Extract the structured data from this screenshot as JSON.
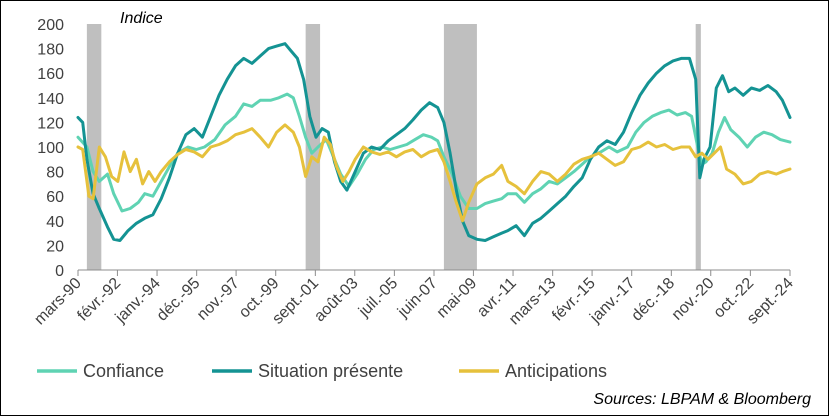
{
  "chart_data": {
    "type": "line",
    "ylabel": "Indice",
    "ylim": [
      0,
      200
    ],
    "yticks": [
      "0",
      "20",
      "40",
      "60",
      "80",
      "100",
      "120",
      "140",
      "160",
      "180",
      "200"
    ],
    "xlim": [
      1990.17,
      2024.67
    ],
    "xticks": [
      {
        "label": "mars-90",
        "t": 1990.17
      },
      {
        "label": "févr.-92",
        "t": 1992.08
      },
      {
        "label": "janv.-94",
        "t": 1994.0
      },
      {
        "label": "déc.-95",
        "t": 1995.92
      },
      {
        "label": "nov.-97",
        "t": 1997.83
      },
      {
        "label": "oct.-99",
        "t": 1999.75
      },
      {
        "label": "sept.-01",
        "t": 2001.67
      },
      {
        "label": "août-03",
        "t": 2003.58
      },
      {
        "label": "juil.-05",
        "t": 2005.5
      },
      {
        "label": "juin-07",
        "t": 2007.42
      },
      {
        "label": "mai-09",
        "t": 2009.33
      },
      {
        "label": "avr.-11",
        "t": 2011.25
      },
      {
        "label": "mars-13",
        "t": 2013.17
      },
      {
        "label": "févr.-15",
        "t": 2015.08
      },
      {
        "label": "janv.-17",
        "t": 2017.0
      },
      {
        "label": "déc.-18",
        "t": 2018.92
      },
      {
        "label": "nov.-20",
        "t": 2020.83
      },
      {
        "label": "oct.-22",
        "t": 2022.75
      },
      {
        "label": "sept.-24",
        "t": 2024.67
      }
    ],
    "recessions": [
      [
        1990.6,
        1991.3
      ],
      [
        2001.2,
        2001.9
      ],
      [
        2007.9,
        2009.5
      ],
      [
        2020.1,
        2020.35
      ]
    ],
    "series": [
      {
        "name": "Confiance",
        "color": "#5fd3b3",
        "points": [
          [
            1990.17,
            108
          ],
          [
            1990.6,
            100
          ],
          [
            1990.9,
            80
          ],
          [
            1991.2,
            72
          ],
          [
            1991.6,
            78
          ],
          [
            1991.9,
            62
          ],
          [
            1992.3,
            48
          ],
          [
            1992.7,
            50
          ],
          [
            1993.1,
            55
          ],
          [
            1993.4,
            62
          ],
          [
            1993.8,
            60
          ],
          [
            1994.2,
            72
          ],
          [
            1994.6,
            84
          ],
          [
            1995.0,
            95
          ],
          [
            1995.5,
            100
          ],
          [
            1995.9,
            98
          ],
          [
            1996.3,
            100
          ],
          [
            1996.8,
            106
          ],
          [
            1997.3,
            118
          ],
          [
            1997.8,
            125
          ],
          [
            1998.2,
            135
          ],
          [
            1998.6,
            133
          ],
          [
            1999.0,
            138
          ],
          [
            1999.5,
            138
          ],
          [
            1999.9,
            140
          ],
          [
            2000.3,
            143
          ],
          [
            2000.6,
            140
          ],
          [
            2000.9,
            125
          ],
          [
            2001.2,
            108
          ],
          [
            2001.5,
            95
          ],
          [
            2001.8,
            100
          ],
          [
            2002.2,
            106
          ],
          [
            2002.6,
            90
          ],
          [
            2002.9,
            78
          ],
          [
            2003.3,
            68
          ],
          [
            2003.7,
            78
          ],
          [
            2004.1,
            90
          ],
          [
            2004.5,
            98
          ],
          [
            2004.9,
            100
          ],
          [
            2005.3,
            98
          ],
          [
            2005.7,
            100
          ],
          [
            2006.1,
            102
          ],
          [
            2006.5,
            106
          ],
          [
            2006.9,
            110
          ],
          [
            2007.3,
            108
          ],
          [
            2007.6,
            105
          ],
          [
            2007.9,
            92
          ],
          [
            2008.3,
            78
          ],
          [
            2008.7,
            60
          ],
          [
            2009.1,
            50
          ],
          [
            2009.5,
            50
          ],
          [
            2009.9,
            54
          ],
          [
            2010.3,
            56
          ],
          [
            2010.7,
            58
          ],
          [
            2011.0,
            62
          ],
          [
            2011.4,
            62
          ],
          [
            2011.8,
            55
          ],
          [
            2012.2,
            62
          ],
          [
            2012.6,
            66
          ],
          [
            2013.0,
            72
          ],
          [
            2013.4,
            70
          ],
          [
            2013.8,
            75
          ],
          [
            2014.2,
            80
          ],
          [
            2014.6,
            86
          ],
          [
            2015.0,
            92
          ],
          [
            2015.5,
            96
          ],
          [
            2015.9,
            100
          ],
          [
            2016.3,
            96
          ],
          [
            2016.8,
            100
          ],
          [
            2017.2,
            112
          ],
          [
            2017.6,
            120
          ],
          [
            2018.0,
            125
          ],
          [
            2018.4,
            128
          ],
          [
            2018.8,
            130
          ],
          [
            2019.2,
            126
          ],
          [
            2019.6,
            128
          ],
          [
            2019.9,
            125
          ],
          [
            2020.2,
            100
          ],
          [
            2020.4,
            86
          ],
          [
            2020.6,
            88
          ],
          [
            2020.9,
            95
          ],
          [
            2021.2,
            112
          ],
          [
            2021.5,
            124
          ],
          [
            2021.8,
            114
          ],
          [
            2022.2,
            108
          ],
          [
            2022.6,
            100
          ],
          [
            2023.0,
            108
          ],
          [
            2023.4,
            112
          ],
          [
            2023.8,
            110
          ],
          [
            2024.2,
            106
          ],
          [
            2024.67,
            104
          ]
        ]
      },
      {
        "name": "Situation présente",
        "color": "#149393",
        "points": [
          [
            1990.17,
            124
          ],
          [
            1990.4,
            120
          ],
          [
            1990.6,
            90
          ],
          [
            1990.9,
            62
          ],
          [
            1991.2,
            50
          ],
          [
            1991.6,
            35
          ],
          [
            1991.9,
            25
          ],
          [
            1992.2,
            24
          ],
          [
            1992.6,
            32
          ],
          [
            1993.0,
            38
          ],
          [
            1993.4,
            42
          ],
          [
            1993.8,
            45
          ],
          [
            1994.2,
            58
          ],
          [
            1994.6,
            75
          ],
          [
            1995.0,
            95
          ],
          [
            1995.4,
            110
          ],
          [
            1995.8,
            115
          ],
          [
            1996.2,
            108
          ],
          [
            1996.6,
            125
          ],
          [
            1997.0,
            142
          ],
          [
            1997.4,
            155
          ],
          [
            1997.8,
            166
          ],
          [
            1998.2,
            172
          ],
          [
            1998.6,
            168
          ],
          [
            1999.0,
            174
          ],
          [
            1999.4,
            180
          ],
          [
            1999.8,
            182
          ],
          [
            2000.2,
            184
          ],
          [
            2000.5,
            178
          ],
          [
            2000.8,
            172
          ],
          [
            2001.1,
            155
          ],
          [
            2001.4,
            125
          ],
          [
            2001.7,
            108
          ],
          [
            2002.0,
            115
          ],
          [
            2002.3,
            112
          ],
          [
            2002.6,
            88
          ],
          [
            2002.9,
            72
          ],
          [
            2003.2,
            65
          ],
          [
            2003.6,
            80
          ],
          [
            2004.0,
            95
          ],
          [
            2004.4,
            100
          ],
          [
            2004.8,
            98
          ],
          [
            2005.2,
            105
          ],
          [
            2005.6,
            110
          ],
          [
            2006.0,
            115
          ],
          [
            2006.4,
            122
          ],
          [
            2006.8,
            130
          ],
          [
            2007.2,
            136
          ],
          [
            2007.6,
            132
          ],
          [
            2007.9,
            120
          ],
          [
            2008.2,
            95
          ],
          [
            2008.5,
            65
          ],
          [
            2008.8,
            40
          ],
          [
            2009.1,
            28
          ],
          [
            2009.5,
            25
          ],
          [
            2009.9,
            24
          ],
          [
            2010.3,
            27
          ],
          [
            2010.7,
            30
          ],
          [
            2011.0,
            32
          ],
          [
            2011.4,
            36
          ],
          [
            2011.8,
            28
          ],
          [
            2012.2,
            38
          ],
          [
            2012.6,
            42
          ],
          [
            2013.0,
            48
          ],
          [
            2013.4,
            54
          ],
          [
            2013.8,
            60
          ],
          [
            2014.2,
            68
          ],
          [
            2014.6,
            75
          ],
          [
            2015.0,
            90
          ],
          [
            2015.4,
            100
          ],
          [
            2015.8,
            105
          ],
          [
            2016.2,
            102
          ],
          [
            2016.6,
            112
          ],
          [
            2017.0,
            128
          ],
          [
            2017.4,
            142
          ],
          [
            2017.8,
            152
          ],
          [
            2018.2,
            160
          ],
          [
            2018.6,
            166
          ],
          [
            2019.0,
            170
          ],
          [
            2019.4,
            172
          ],
          [
            2019.8,
            172
          ],
          [
            2020.1,
            155
          ],
          [
            2020.3,
            75
          ],
          [
            2020.5,
            90
          ],
          [
            2020.8,
            100
          ],
          [
            2021.1,
            148
          ],
          [
            2021.4,
            158
          ],
          [
            2021.7,
            145
          ],
          [
            2022.0,
            148
          ],
          [
            2022.4,
            142
          ],
          [
            2022.8,
            148
          ],
          [
            2023.2,
            146
          ],
          [
            2023.6,
            150
          ],
          [
            2024.0,
            145
          ],
          [
            2024.3,
            138
          ],
          [
            2024.67,
            124
          ]
        ]
      },
      {
        "name": "Anticipations",
        "color": "#e6c13c",
        "points": [
          [
            1990.17,
            100
          ],
          [
            1990.4,
            98
          ],
          [
            1990.7,
            60
          ],
          [
            1990.9,
            58
          ],
          [
            1991.2,
            100
          ],
          [
            1991.5,
            92
          ],
          [
            1991.8,
            76
          ],
          [
            1992.1,
            72
          ],
          [
            1992.4,
            96
          ],
          [
            1992.7,
            80
          ],
          [
            1993.0,
            90
          ],
          [
            1993.3,
            70
          ],
          [
            1993.6,
            80
          ],
          [
            1993.9,
            72
          ],
          [
            1994.2,
            80
          ],
          [
            1994.6,
            88
          ],
          [
            1995.0,
            94
          ],
          [
            1995.4,
            98
          ],
          [
            1995.8,
            96
          ],
          [
            1996.2,
            92
          ],
          [
            1996.6,
            100
          ],
          [
            1997.0,
            102
          ],
          [
            1997.4,
            105
          ],
          [
            1997.8,
            110
          ],
          [
            1998.2,
            112
          ],
          [
            1998.6,
            115
          ],
          [
            1999.0,
            108
          ],
          [
            1999.4,
            100
          ],
          [
            1999.8,
            112
          ],
          [
            2000.2,
            118
          ],
          [
            2000.6,
            112
          ],
          [
            2000.9,
            100
          ],
          [
            2001.2,
            76
          ],
          [
            2001.5,
            92
          ],
          [
            2001.8,
            88
          ],
          [
            2002.1,
            108
          ],
          [
            2002.4,
            102
          ],
          [
            2002.7,
            84
          ],
          [
            2003.0,
            72
          ],
          [
            2003.3,
            80
          ],
          [
            2003.6,
            90
          ],
          [
            2004.0,
            100
          ],
          [
            2004.4,
            96
          ],
          [
            2004.8,
            94
          ],
          [
            2005.2,
            96
          ],
          [
            2005.6,
            92
          ],
          [
            2006.0,
            96
          ],
          [
            2006.4,
            98
          ],
          [
            2006.8,
            92
          ],
          [
            2007.2,
            96
          ],
          [
            2007.6,
            98
          ],
          [
            2007.9,
            88
          ],
          [
            2008.2,
            72
          ],
          [
            2008.5,
            55
          ],
          [
            2008.8,
            40
          ],
          [
            2009.1,
            55
          ],
          [
            2009.5,
            70
          ],
          [
            2009.9,
            75
          ],
          [
            2010.3,
            78
          ],
          [
            2010.7,
            85
          ],
          [
            2011.0,
            72
          ],
          [
            2011.4,
            68
          ],
          [
            2011.8,
            62
          ],
          [
            2012.2,
            72
          ],
          [
            2012.6,
            80
          ],
          [
            2013.0,
            78
          ],
          [
            2013.4,
            72
          ],
          [
            2013.8,
            78
          ],
          [
            2014.2,
            86
          ],
          [
            2014.6,
            90
          ],
          [
            2015.0,
            92
          ],
          [
            2015.4,
            95
          ],
          [
            2015.8,
            90
          ],
          [
            2016.2,
            85
          ],
          [
            2016.6,
            88
          ],
          [
            2017.0,
            98
          ],
          [
            2017.4,
            100
          ],
          [
            2017.8,
            104
          ],
          [
            2018.2,
            100
          ],
          [
            2018.6,
            102
          ],
          [
            2019.0,
            98
          ],
          [
            2019.4,
            100
          ],
          [
            2019.8,
            100
          ],
          [
            2020.1,
            92
          ],
          [
            2020.4,
            95
          ],
          [
            2020.7,
            90
          ],
          [
            2021.0,
            95
          ],
          [
            2021.3,
            100
          ],
          [
            2021.6,
            82
          ],
          [
            2022.0,
            78
          ],
          [
            2022.4,
            70
          ],
          [
            2022.8,
            72
          ],
          [
            2023.2,
            78
          ],
          [
            2023.6,
            80
          ],
          [
            2024.0,
            78
          ],
          [
            2024.3,
            80
          ],
          [
            2024.67,
            82
          ]
        ]
      }
    ]
  },
  "source": "Sources: LBPAM & Bloomberg"
}
